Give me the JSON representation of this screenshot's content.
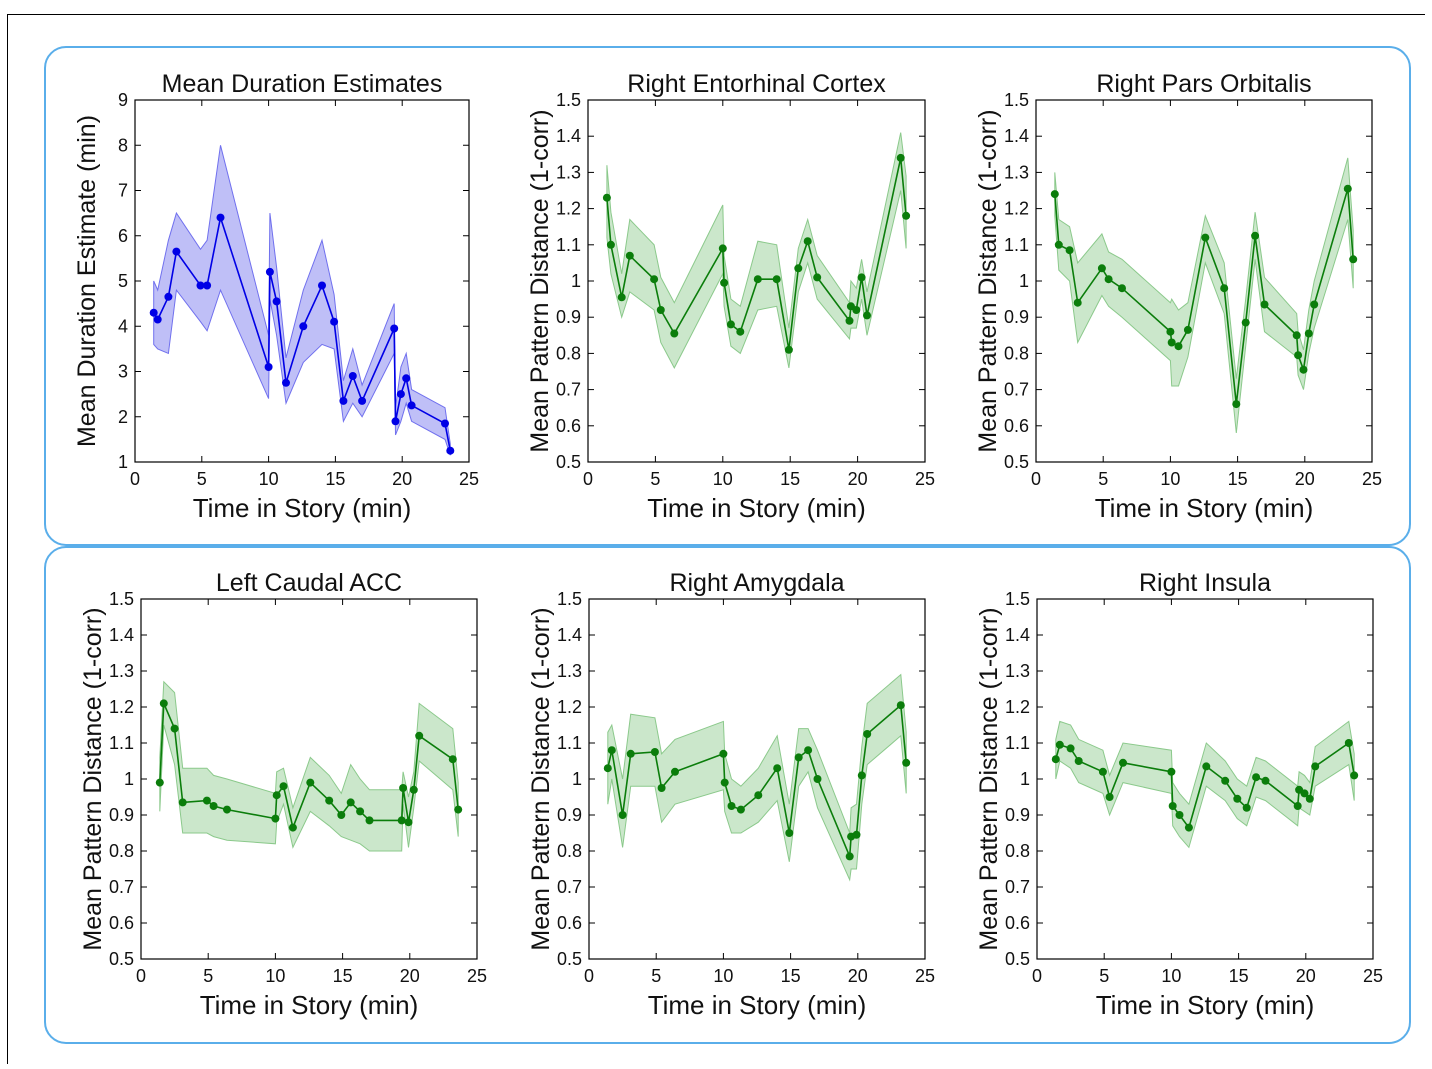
{
  "xlabel": "Time in Story (min)",
  "chart_data": [
    {
      "type": "line",
      "title": "Mean Duration Estimates",
      "xlabel": "Time in Story (min)",
      "ylabel": "Mean Duration Estimate (min)",
      "xlim": [
        0,
        25
      ],
      "ylim": [
        1,
        9
      ],
      "xticks": [
        0,
        5,
        10,
        15,
        20,
        25
      ],
      "yticks": [
        1,
        2,
        3,
        4,
        5,
        6,
        7,
        8,
        9
      ],
      "ytick_labels": [
        "1",
        "2",
        "3",
        "4",
        "5",
        "6",
        "7",
        "8",
        "9"
      ],
      "color": "#0000e6",
      "band_color": "#7070ee",
      "grid": false,
      "series": [
        {
          "x": [
            1.4,
            1.7,
            2.5,
            3.1,
            4.9,
            5.4,
            6.4,
            10.0,
            10.1,
            10.6,
            11.3,
            12.6,
            14.0,
            14.9,
            15.6,
            16.3,
            17.0,
            19.4,
            19.5,
            19.9,
            20.3,
            20.7,
            23.2,
            23.6
          ],
          "y": [
            4.3,
            4.15,
            4.65,
            5.65,
            4.9,
            4.9,
            6.4,
            3.1,
            5.2,
            4.55,
            2.75,
            4.0,
            4.9,
            4.1,
            2.35,
            2.9,
            2.35,
            3.95,
            1.9,
            2.5,
            2.85,
            2.25,
            1.85,
            1.25
          ],
          "lower": [
            3.6,
            3.5,
            3.4,
            4.8,
            4.1,
            3.9,
            4.8,
            2.4,
            4.6,
            3.8,
            2.3,
            3.2,
            3.6,
            3.5,
            1.9,
            2.3,
            2.0,
            3.4,
            1.6,
            1.9,
            2.3,
            1.9,
            1.5,
            1.15
          ],
          "upper": [
            5.0,
            4.8,
            5.9,
            6.5,
            5.7,
            5.9,
            8.0,
            3.8,
            6.5,
            5.3,
            3.3,
            4.8,
            5.9,
            4.7,
            2.8,
            3.5,
            2.7,
            4.5,
            2.2,
            3.1,
            3.4,
            2.6,
            2.2,
            1.4
          ]
        }
      ]
    },
    {
      "type": "line",
      "title": "Right Entorhinal Cortex",
      "xlabel": "Time in Story (min)",
      "ylabel": "Mean Pattern Distance (1-corr)",
      "xlim": [
        0,
        25
      ],
      "ylim": [
        0.5,
        1.5
      ],
      "xticks": [
        0,
        5,
        10,
        15,
        20,
        25
      ],
      "yticks": [
        0.5,
        0.6,
        0.7,
        0.8,
        0.9,
        1.0,
        1.1,
        1.2,
        1.3,
        1.4,
        1.5
      ],
      "ytick_labels": [
        "0.5",
        "0.6",
        "0.7",
        "0.8",
        "0.9",
        "1",
        "1.1",
        "1.2",
        "1.3",
        "1.4",
        "1.5"
      ],
      "color": "#0b7d0b",
      "band_color": "#8bc98b",
      "grid": false,
      "series": [
        {
          "x": [
            1.4,
            1.7,
            2.5,
            3.1,
            4.9,
            5.4,
            6.4,
            10.0,
            10.1,
            10.6,
            11.3,
            12.6,
            14.0,
            14.9,
            15.6,
            16.3,
            17.0,
            19.4,
            19.5,
            19.9,
            20.3,
            20.7,
            23.2,
            23.6
          ],
          "y": [
            1.23,
            1.1,
            0.955,
            1.07,
            1.005,
            0.92,
            0.855,
            1.09,
            0.995,
            0.88,
            0.86,
            1.005,
            1.005,
            0.81,
            1.035,
            1.11,
            1.01,
            0.89,
            0.93,
            0.92,
            1.01,
            0.905,
            1.34,
            1.18
          ],
          "lower": [
            1.12,
            1.02,
            0.9,
            0.97,
            0.92,
            0.83,
            0.76,
            1.02,
            0.93,
            0.82,
            0.8,
            0.92,
            0.93,
            0.76,
            0.97,
            1.05,
            0.95,
            0.84,
            0.87,
            0.87,
            0.95,
            0.85,
            1.25,
            1.09
          ],
          "upper": [
            1.32,
            1.19,
            1.02,
            1.17,
            1.1,
            1.01,
            0.94,
            1.21,
            1.07,
            0.95,
            0.93,
            1.11,
            1.1,
            0.87,
            1.09,
            1.17,
            1.07,
            0.94,
            1.0,
            0.98,
            1.06,
            0.97,
            1.41,
            1.29
          ]
        }
      ]
    },
    {
      "type": "line",
      "title": "Right Pars Orbitalis",
      "xlabel": "Time in Story (min)",
      "ylabel": "Mean Pattern Distance (1-corr)",
      "xlim": [
        0,
        25
      ],
      "ylim": [
        0.5,
        1.5
      ],
      "xticks": [
        0,
        5,
        10,
        15,
        20,
        25
      ],
      "yticks": [
        0.5,
        0.6,
        0.7,
        0.8,
        0.9,
        1.0,
        1.1,
        1.2,
        1.3,
        1.4,
        1.5
      ],
      "ytick_labels": [
        "0.5",
        "0.6",
        "0.7",
        "0.8",
        "0.9",
        "1",
        "1.1",
        "1.2",
        "1.3",
        "1.4",
        "1.5"
      ],
      "color": "#0b7d0b",
      "band_color": "#8bc98b",
      "grid": false,
      "series": [
        {
          "x": [
            1.4,
            1.7,
            2.5,
            3.1,
            4.9,
            5.4,
            6.4,
            10.0,
            10.1,
            10.6,
            11.3,
            12.6,
            14.0,
            14.9,
            15.6,
            16.3,
            17.0,
            19.4,
            19.5,
            19.9,
            20.3,
            20.7,
            23.2,
            23.6
          ],
          "y": [
            1.24,
            1.1,
            1.085,
            0.94,
            1.035,
            1.005,
            0.98,
            0.86,
            0.83,
            0.82,
            0.865,
            1.12,
            0.98,
            0.66,
            0.885,
            1.125,
            0.935,
            0.85,
            0.795,
            0.755,
            0.855,
            0.935,
            1.255,
            1.06
          ],
          "lower": [
            1.18,
            1.03,
            1.0,
            0.83,
            0.96,
            0.93,
            0.9,
            0.78,
            0.71,
            0.71,
            0.79,
            1.05,
            0.91,
            0.58,
            0.82,
            1.06,
            0.86,
            0.79,
            0.74,
            0.7,
            0.8,
            0.87,
            1.17,
            0.98
          ],
          "upper": [
            1.3,
            1.17,
            1.15,
            1.05,
            1.13,
            1.08,
            1.06,
            0.94,
            0.95,
            0.92,
            0.94,
            1.18,
            1.05,
            0.73,
            0.95,
            1.19,
            1.01,
            0.91,
            0.86,
            0.81,
            0.92,
            1.0,
            1.34,
            1.14
          ]
        }
      ]
    },
    {
      "type": "line",
      "title": "Left Caudal ACC",
      "xlabel": "Time in Story (min)",
      "ylabel": "Mean Pattern Distance (1-corr)",
      "xlim": [
        0,
        25
      ],
      "ylim": [
        0.5,
        1.5
      ],
      "xticks": [
        0,
        5,
        10,
        15,
        20,
        25
      ],
      "yticks": [
        0.5,
        0.6,
        0.7,
        0.8,
        0.9,
        1.0,
        1.1,
        1.2,
        1.3,
        1.4,
        1.5
      ],
      "ytick_labels": [
        "0.5",
        "0.6",
        "0.7",
        "0.8",
        "0.9",
        "1",
        "1.1",
        "1.2",
        "1.3",
        "1.4",
        "1.5"
      ],
      "color": "#0b7d0b",
      "band_color": "#8bc98b",
      "grid": false,
      "series": [
        {
          "x": [
            1.4,
            1.7,
            2.5,
            3.1,
            4.9,
            5.4,
            6.4,
            10.0,
            10.1,
            10.6,
            11.3,
            12.6,
            14.0,
            14.9,
            15.6,
            16.3,
            17.0,
            19.4,
            19.5,
            19.9,
            20.3,
            20.7,
            23.2,
            23.6
          ],
          "y": [
            0.99,
            1.21,
            1.14,
            0.935,
            0.94,
            0.925,
            0.915,
            0.89,
            0.955,
            0.98,
            0.865,
            0.99,
            0.94,
            0.9,
            0.935,
            0.91,
            0.885,
            0.885,
            0.975,
            0.88,
            0.97,
            1.12,
            1.055,
            0.915
          ],
          "lower": [
            0.91,
            1.15,
            1.04,
            0.85,
            0.85,
            0.84,
            0.83,
            0.82,
            0.88,
            0.93,
            0.81,
            0.91,
            0.87,
            0.84,
            0.83,
            0.82,
            0.8,
            0.8,
            0.93,
            0.81,
            0.92,
            1.05,
            0.97,
            0.84
          ],
          "upper": [
            1.06,
            1.27,
            1.24,
            1.03,
            1.03,
            1.01,
            1.0,
            0.96,
            1.02,
            1.03,
            0.92,
            1.06,
            1.01,
            0.96,
            1.04,
            1.0,
            0.97,
            0.97,
            1.02,
            0.95,
            1.02,
            1.21,
            1.14,
            0.99
          ]
        }
      ]
    },
    {
      "type": "line",
      "title": "Right Amygdala",
      "xlabel": "Time in Story (min)",
      "ylabel": "Mean Pattern Distance (1-corr)",
      "xlim": [
        0,
        25
      ],
      "ylim": [
        0.5,
        1.5
      ],
      "xticks": [
        0,
        5,
        10,
        15,
        20,
        25
      ],
      "yticks": [
        0.5,
        0.6,
        0.7,
        0.8,
        0.9,
        1.0,
        1.1,
        1.2,
        1.3,
        1.4,
        1.5
      ],
      "ytick_labels": [
        "0.5",
        "0.6",
        "0.7",
        "0.8",
        "0.9",
        "1",
        "1.1",
        "1.2",
        "1.3",
        "1.4",
        "1.5"
      ],
      "color": "#0b7d0b",
      "band_color": "#8bc98b",
      "grid": false,
      "series": [
        {
          "x": [
            1.4,
            1.7,
            2.5,
            3.1,
            4.9,
            5.4,
            6.4,
            10.0,
            10.1,
            10.6,
            11.3,
            12.6,
            14.0,
            14.9,
            15.6,
            16.3,
            17.0,
            19.4,
            19.5,
            19.9,
            20.3,
            20.7,
            23.2,
            23.6
          ],
          "y": [
            1.03,
            1.08,
            0.9,
            1.07,
            1.075,
            0.975,
            1.02,
            1.07,
            0.99,
            0.925,
            0.915,
            0.955,
            1.03,
            0.85,
            1.06,
            1.08,
            1.0,
            0.785,
            0.84,
            0.845,
            1.01,
            1.125,
            1.205,
            1.045
          ],
          "lower": [
            0.93,
            1.0,
            0.81,
            0.98,
            0.98,
            0.88,
            0.93,
            0.97,
            0.91,
            0.85,
            0.85,
            0.88,
            0.94,
            0.77,
            0.98,
            1.02,
            0.92,
            0.72,
            0.75,
            0.75,
            0.93,
            1.04,
            1.12,
            0.96
          ],
          "upper": [
            1.13,
            1.15,
            1.0,
            1.18,
            1.17,
            1.07,
            1.11,
            1.16,
            1.07,
            1.0,
            0.98,
            1.03,
            1.12,
            0.93,
            1.14,
            1.14,
            1.08,
            0.85,
            0.92,
            0.93,
            1.09,
            1.21,
            1.29,
            1.13
          ]
        }
      ]
    },
    {
      "type": "line",
      "title": "Right Insula",
      "xlabel": "Time in Story (min)",
      "ylabel": "Mean Pattern Distance (1-corr)",
      "xlim": [
        0,
        25
      ],
      "ylim": [
        0.5,
        1.5
      ],
      "xticks": [
        0,
        5,
        10,
        15,
        20,
        25
      ],
      "yticks": [
        0.5,
        0.6,
        0.7,
        0.8,
        0.9,
        1.0,
        1.1,
        1.2,
        1.3,
        1.4,
        1.5
      ],
      "ytick_labels": [
        "0.5",
        "0.6",
        "0.7",
        "0.8",
        "0.9",
        "1",
        "1.1",
        "1.2",
        "1.3",
        "1.4",
        "1.5"
      ],
      "color": "#0b7d0b",
      "band_color": "#8bc98b",
      "grid": false,
      "series": [
        {
          "x": [
            1.4,
            1.7,
            2.5,
            3.1,
            4.9,
            5.4,
            6.4,
            10.0,
            10.1,
            10.6,
            11.3,
            12.6,
            14.0,
            14.9,
            15.6,
            16.3,
            17.0,
            19.4,
            19.5,
            19.9,
            20.3,
            20.7,
            23.2,
            23.6
          ],
          "y": [
            1.055,
            1.095,
            1.085,
            1.05,
            1.02,
            0.95,
            1.045,
            1.02,
            0.925,
            0.9,
            0.865,
            1.035,
            0.995,
            0.945,
            0.92,
            1.005,
            0.995,
            0.925,
            0.97,
            0.96,
            0.945,
            1.035,
            1.1,
            1.01
          ],
          "lower": [
            1.0,
            1.05,
            1.03,
            0.99,
            0.96,
            0.9,
            0.99,
            0.96,
            0.87,
            0.84,
            0.81,
            0.98,
            0.94,
            0.89,
            0.87,
            0.95,
            0.94,
            0.87,
            0.92,
            0.91,
            0.9,
            0.98,
            1.04,
            0.94
          ],
          "upper": [
            1.11,
            1.16,
            1.15,
            1.11,
            1.08,
            1.01,
            1.1,
            1.08,
            0.99,
            0.96,
            0.93,
            1.1,
            1.05,
            1.0,
            0.98,
            1.06,
            1.05,
            0.98,
            1.02,
            1.01,
            0.99,
            1.09,
            1.16,
            1.07
          ]
        }
      ]
    }
  ]
}
